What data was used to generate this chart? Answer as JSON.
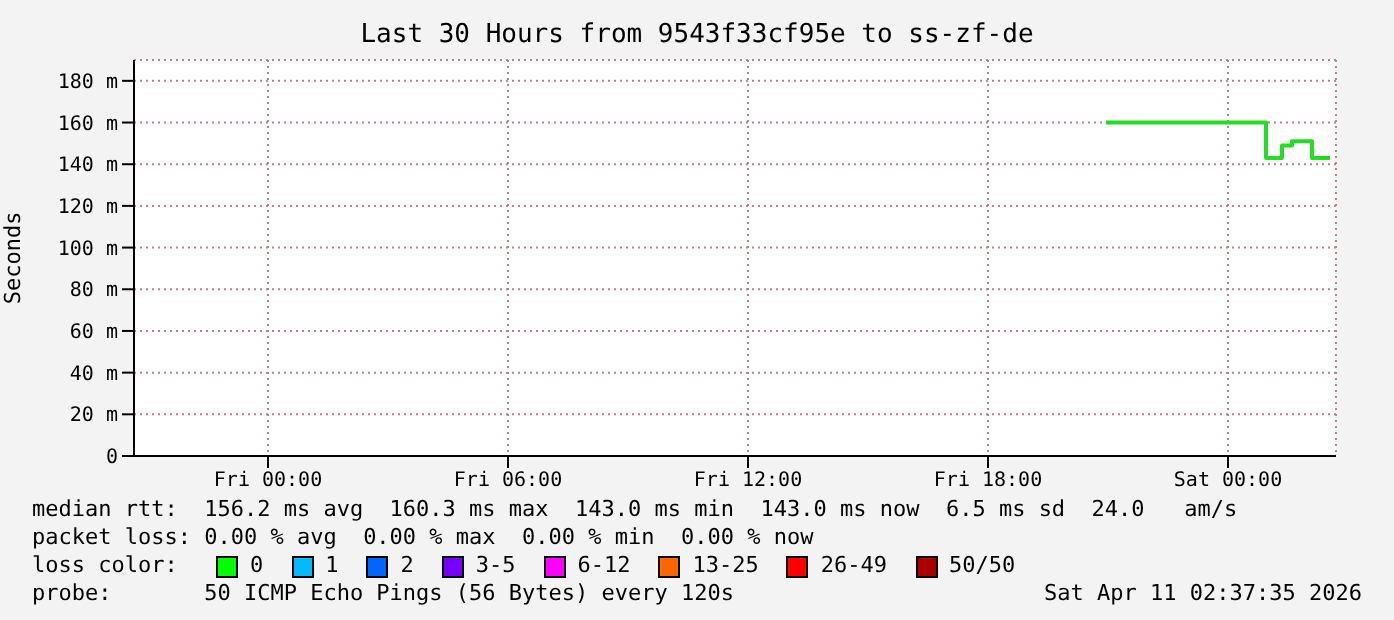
{
  "chart_data": {
    "type": "step",
    "title": "Last 30 Hours from 9543f33cf95e to ss-zf-de",
    "ylabel": "Seconds",
    "x": [
      "2026-04-10T20:57",
      "2026-04-11T00:57",
      "2026-04-11T01:21",
      "2026-04-11T01:36",
      "2026-04-11T02:06",
      "2026-04-11T02:33"
    ],
    "series": [
      {
        "color": "#22dd22",
        "values": [
          160,
          143,
          149,
          151,
          143,
          143
        ]
      }
    ],
    "xlim": [
      "2026-04-09T20:39",
      "2026-04-11T02:42"
    ],
    "xticks": [
      {
        "value": "2026-04-10T00:00",
        "label": "Fri 00:00"
      },
      {
        "value": "2026-04-10T06:00",
        "label": "Fri 06:00"
      },
      {
        "value": "2026-04-10T12:00",
        "label": "Fri 12:00"
      },
      {
        "value": "2026-04-10T18:00",
        "label": "Fri 18:00"
      },
      {
        "value": "2026-04-11T00:00",
        "label": "Sat 00:00"
      }
    ],
    "ylim": [
      0,
      190
    ],
    "yticks": [
      0,
      {
        "value": 20,
        "label": "20 m"
      },
      {
        "value": 40,
        "label": "40 m"
      },
      {
        "value": 60,
        "label": "60 m"
      },
      {
        "value": 80,
        "label": "80 m"
      },
      {
        "value": 100,
        "label": "100 m"
      },
      {
        "value": 120,
        "label": "120 m"
      },
      {
        "value": 140,
        "label": "140 m"
      },
      {
        "value": 160,
        "label": "160 m"
      },
      {
        "value": 180,
        "label": "180 m"
      }
    ],
    "grid": true,
    "marker": "none",
    "line_style": "solid",
    "legend": false,
    "annotations": [
      "median rtt:  156.2 ms avg  160.3 ms max  143.0 ms min  143.0 ms now  6.5 ms sd  24.0   am/s",
      "packet loss: 0.00 % avg  0.00 % max  0.00 % min  0.00 % now",
      "loss color:",
      "0",
      "1",
      "2",
      "3-5",
      "6-12",
      "13-25",
      "26-49",
      "50/50",
      "probe:       50 ICMP Echo Pings (56 Bytes) every 120s",
      "Sat Apr 11 02:37:35 2026"
    ]
  }
}
